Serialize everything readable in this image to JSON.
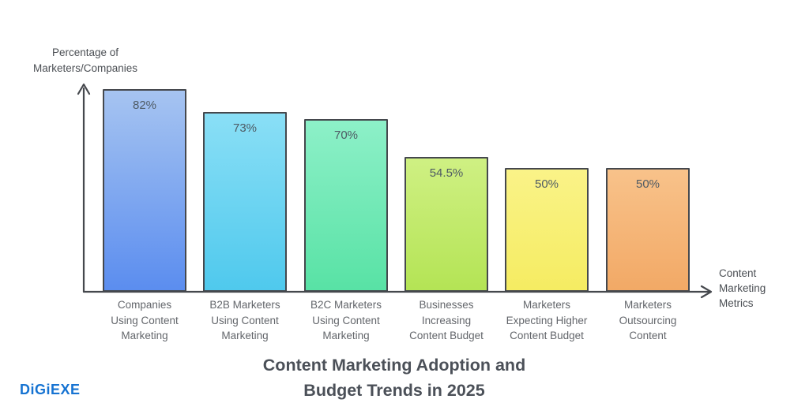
{
  "page": {
    "background": "#ffffff"
  },
  "logo": {
    "text": "DiGiEXE",
    "color": "#1673d2"
  },
  "title": {
    "text": "Content Marketing Adoption and\nBudget Trends in 2025",
    "color": "#4b5058"
  },
  "axes": {
    "y_title": "Percentage of\nMarketers/Companies",
    "x_title": "Content\nMarketing\nMetrics",
    "line_color": "#45484d",
    "text_color": "#4b4f54"
  },
  "chart_data": {
    "type": "bar",
    "title": "Content Marketing Adoption and Budget Trends in 2025",
    "xlabel": "Content Marketing Metrics",
    "ylabel": "Percentage of Marketers/Companies",
    "ylim": [
      0,
      100
    ],
    "grid": false,
    "legend": false,
    "categories": [
      "Companies\nUsing Content\nMarketing",
      "B2B Marketers\nUsing Content\nMarketing",
      "B2C Marketers\nUsing Content\nMarketing",
      "Businesses\nIncreasing\nContent Budget",
      "Marketers\nExpecting Higher\nContent Budget",
      "Marketers\nOutsourcing\nContent"
    ],
    "values": [
      82,
      73,
      70,
      54.5,
      50,
      50
    ],
    "value_labels": [
      "82%",
      "73%",
      "70%",
      "54.5%",
      "50%",
      "50%"
    ],
    "bar_fill_gradients": [
      [
        "#a6c4f1",
        "#5b8def"
      ],
      [
        "#8adff6",
        "#4fc9ed"
      ],
      [
        "#8df0c8",
        "#58e2a5"
      ],
      [
        "#cff083",
        "#b4e455"
      ],
      [
        "#faf388",
        "#f5ec62"
      ],
      [
        "#f8c28a",
        "#f2a966"
      ]
    ],
    "bar_border_color": "#45484d",
    "value_label_color": "#4e5a64"
  }
}
